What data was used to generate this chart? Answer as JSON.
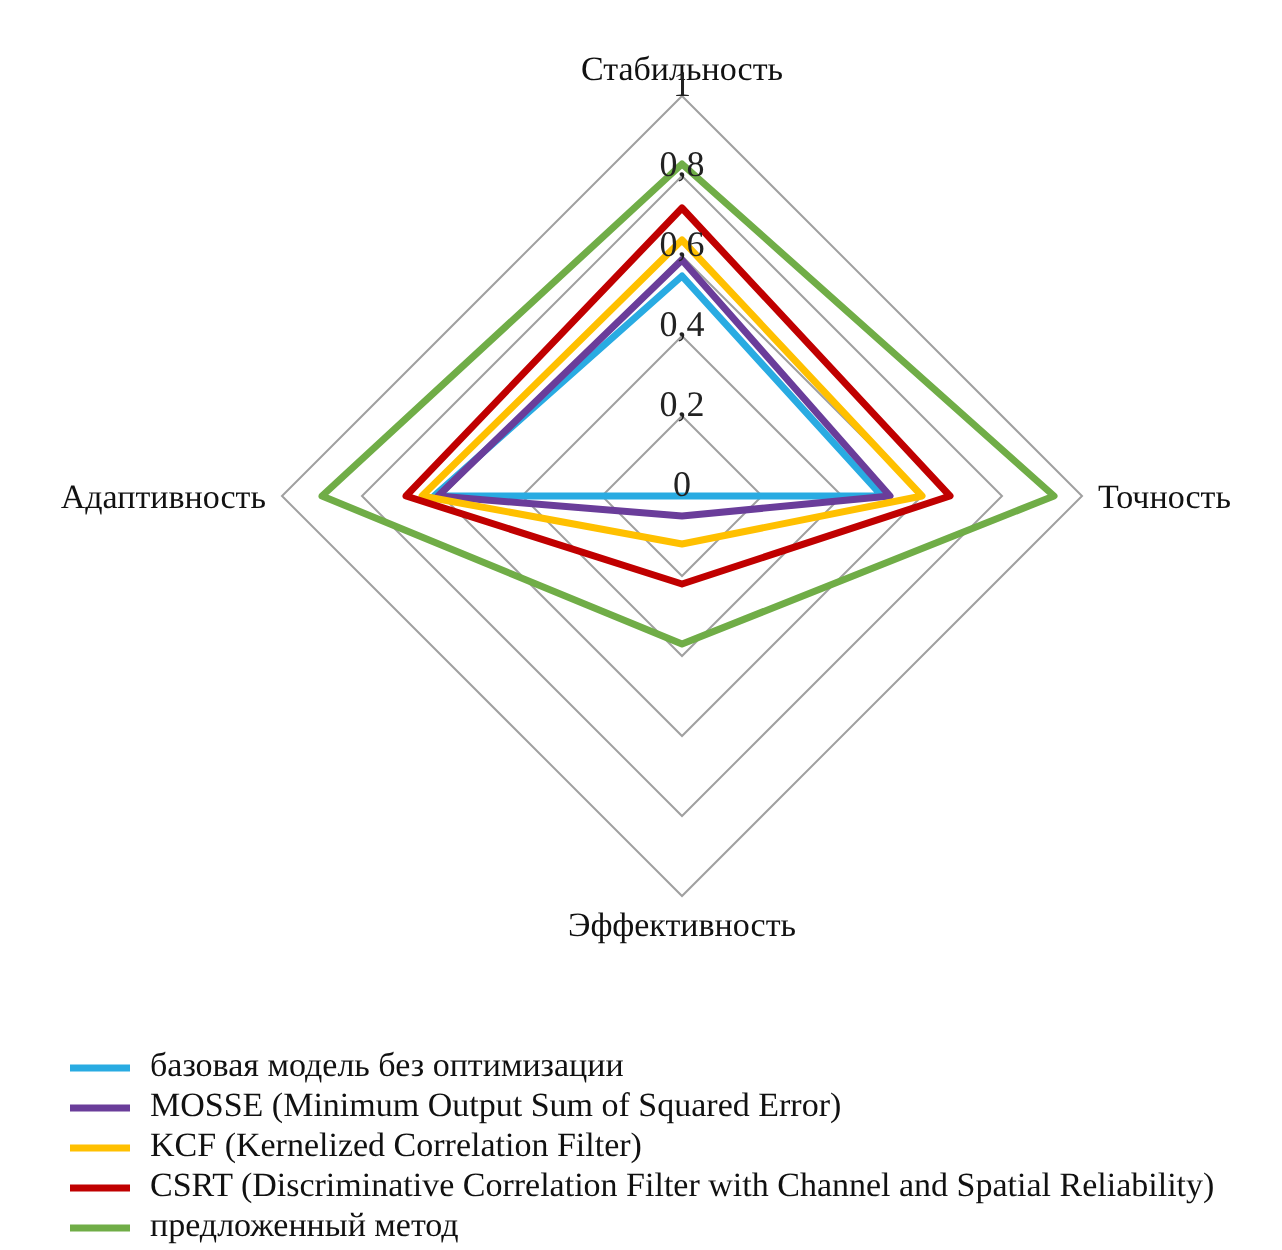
{
  "chart_data": {
    "type": "radar",
    "categories": [
      "Стабильность",
      "Точность",
      "Эффективность",
      "Адаптивность"
    ],
    "ylim": [
      0,
      1
    ],
    "yticks": [
      {
        "value": 0,
        "label": "0"
      },
      {
        "value": 0.2,
        "label": "0,2"
      },
      {
        "value": 0.4,
        "label": "0,4"
      },
      {
        "value": 0.6,
        "label": "0,6"
      },
      {
        "value": 0.8,
        "label": "0,8"
      },
      {
        "value": 1,
        "label": "1"
      }
    ],
    "grid": true,
    "legend": "bottom",
    "marker": "none",
    "line_style": "solid",
    "series": [
      {
        "name": "базовая модель без оптимизации",
        "color": "#29abe2",
        "values": [
          0.55,
          0.5,
          0,
          0.62
        ]
      },
      {
        "name": "MOSSE (Minimum Output Sum of Squared Error)",
        "color": "#6a3d9a",
        "values": [
          0.59,
          0.52,
          0.05,
          0.61
        ]
      },
      {
        "name": "KCF (Kernelized Correlation Filter)",
        "color": "#ffc000",
        "values": [
          0.64,
          0.6,
          0.12,
          0.65
        ]
      },
      {
        "name": "CSRT (Discriminative Correlation Filter with Channel and Spatial Reliability)",
        "color": "#c00000",
        "values": [
          0.72,
          0.67,
          0.22,
          0.69
        ]
      },
      {
        "name": "предложенный метод",
        "color": "#70ad47",
        "values": [
          0.83,
          0.93,
          0.37,
          0.9
        ]
      }
    ]
  }
}
